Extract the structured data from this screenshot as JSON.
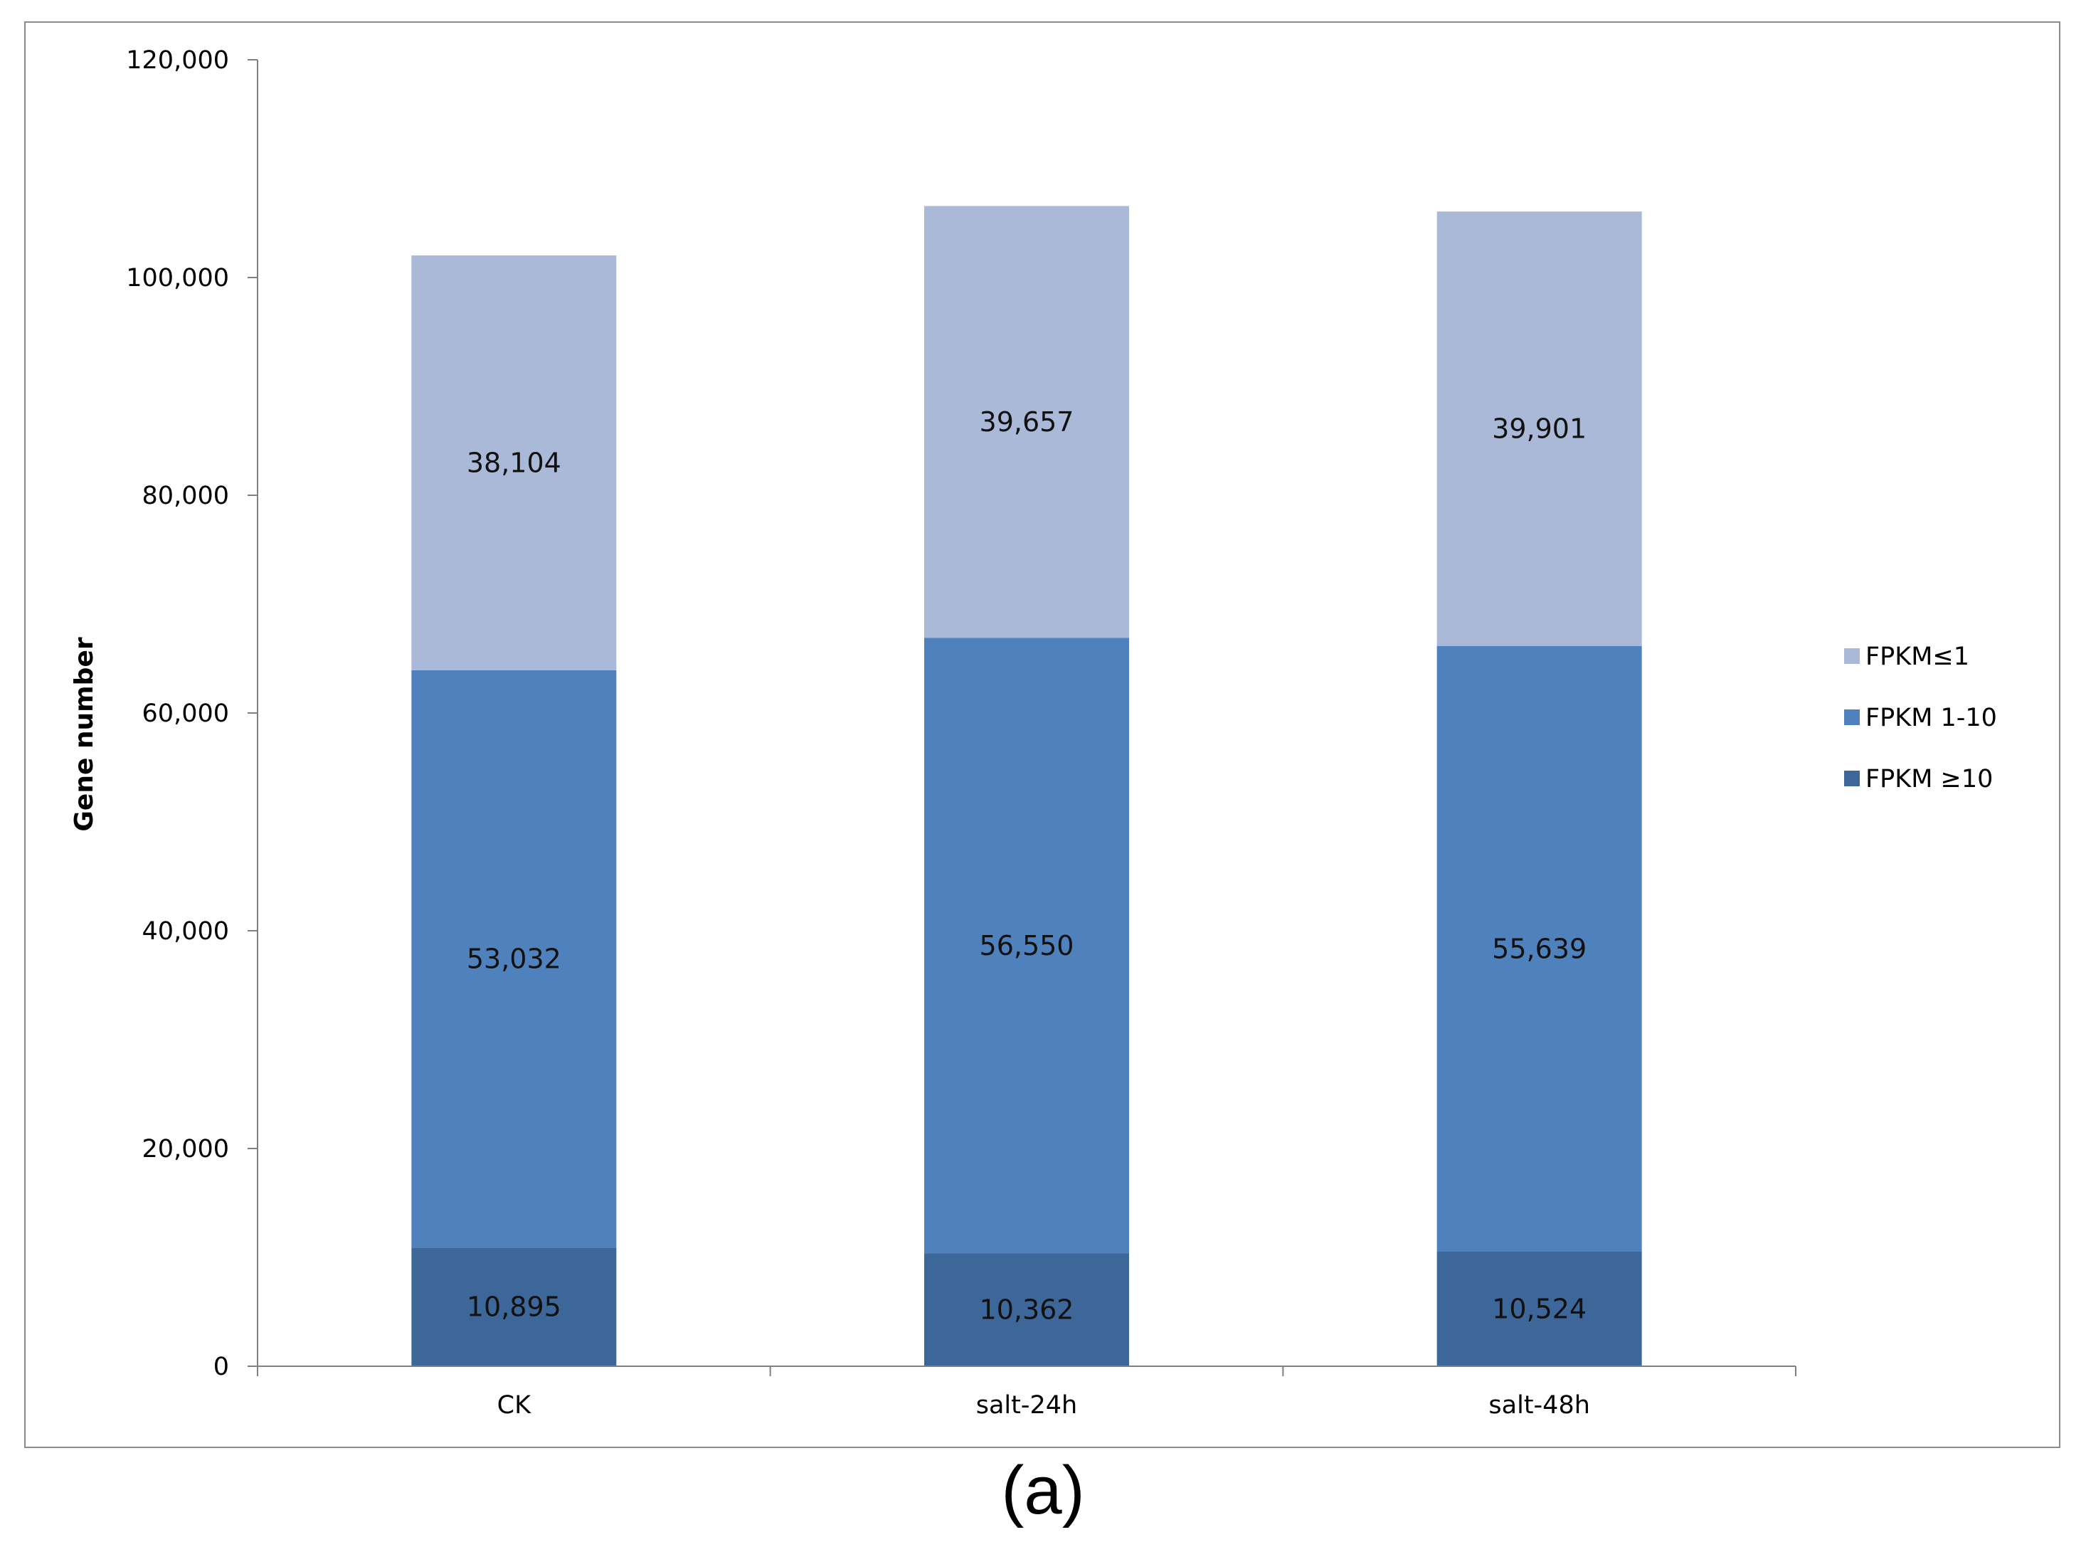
{
  "caption": "(a)",
  "chart_data": {
    "type": "bar",
    "stacked": true,
    "categories": [
      "CK",
      "salt-24h",
      "salt-48h"
    ],
    "series": [
      {
        "name": "FPKM ≥10",
        "values": [
          10895,
          10362,
          10524
        ],
        "labels": [
          "10,895",
          "10,362",
          "10,524"
        ],
        "color": "#3d6699"
      },
      {
        "name": "FPKM 1-10",
        "values": [
          53032,
          56550,
          55639
        ],
        "labels": [
          "53,032",
          "56,550",
          "55,639"
        ],
        "color": "#4f81bd"
      },
      {
        "name": "FPKM≤1",
        "values": [
          38104,
          39657,
          39901
        ],
        "labels": [
          "38,104",
          "39,657",
          "39,901"
        ],
        "color": "#aab9d7"
      }
    ],
    "title": "",
    "xlabel": "",
    "ylabel": "Gene number",
    "ylim": [
      0,
      120000
    ],
    "yticks": [
      0,
      20000,
      40000,
      60000,
      80000,
      100000,
      120000
    ],
    "ytick_labels": [
      "0",
      "20,000",
      "40,000",
      "60,000",
      "80,000",
      "100,000",
      "120,000"
    ],
    "grid": false,
    "legend_position": "right",
    "legend_order": [
      "FPKM≤1",
      "FPKM 1-10",
      "FPKM ≥10"
    ]
  }
}
